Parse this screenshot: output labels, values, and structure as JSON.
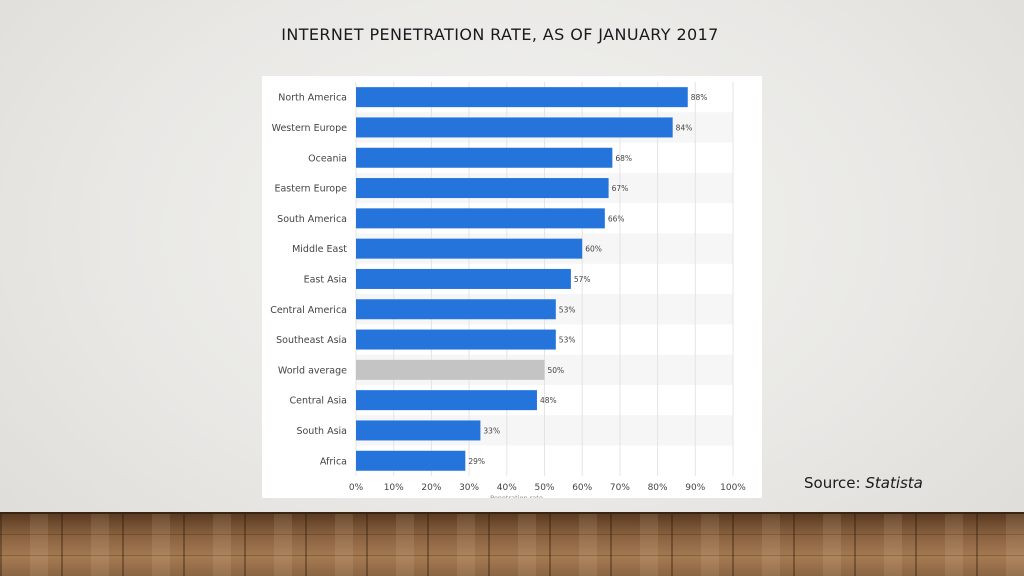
{
  "slide": {
    "title": "INTERNET PENETRATION RATE, AS OF JANUARY 2017",
    "source_prefix": "Source: ",
    "source_name": "Statista"
  },
  "colors": {
    "bar": "#2474dc",
    "highlight_bar": "#c4c4c4",
    "grid": "#e4e4e4",
    "band": "#f6f6f6",
    "label": "#444444"
  },
  "chart_data": {
    "type": "bar",
    "orientation": "horizontal",
    "xlabel": "Penetration rate",
    "ylabel": "",
    "xlim": [
      0,
      100
    ],
    "x_ticks": [
      "0%",
      "10%",
      "20%",
      "30%",
      "40%",
      "50%",
      "60%",
      "70%",
      "80%",
      "90%",
      "100%"
    ],
    "grid": true,
    "categories": [
      "North America",
      "Western Europe",
      "Oceania",
      "Eastern Europe",
      "South America",
      "Middle East",
      "East Asia",
      "Central America",
      "Southeast Asia",
      "World average",
      "Central Asia",
      "South Asia",
      "Africa"
    ],
    "values": [
      88,
      84,
      68,
      67,
      66,
      60,
      57,
      53,
      53,
      50,
      48,
      33,
      29
    ],
    "value_labels": [
      "88%",
      "84%",
      "68%",
      "67%",
      "66%",
      "60%",
      "57%",
      "53%",
      "53%",
      "50%",
      "48%",
      "33%",
      "29%"
    ],
    "highlighted_category": "World average"
  }
}
